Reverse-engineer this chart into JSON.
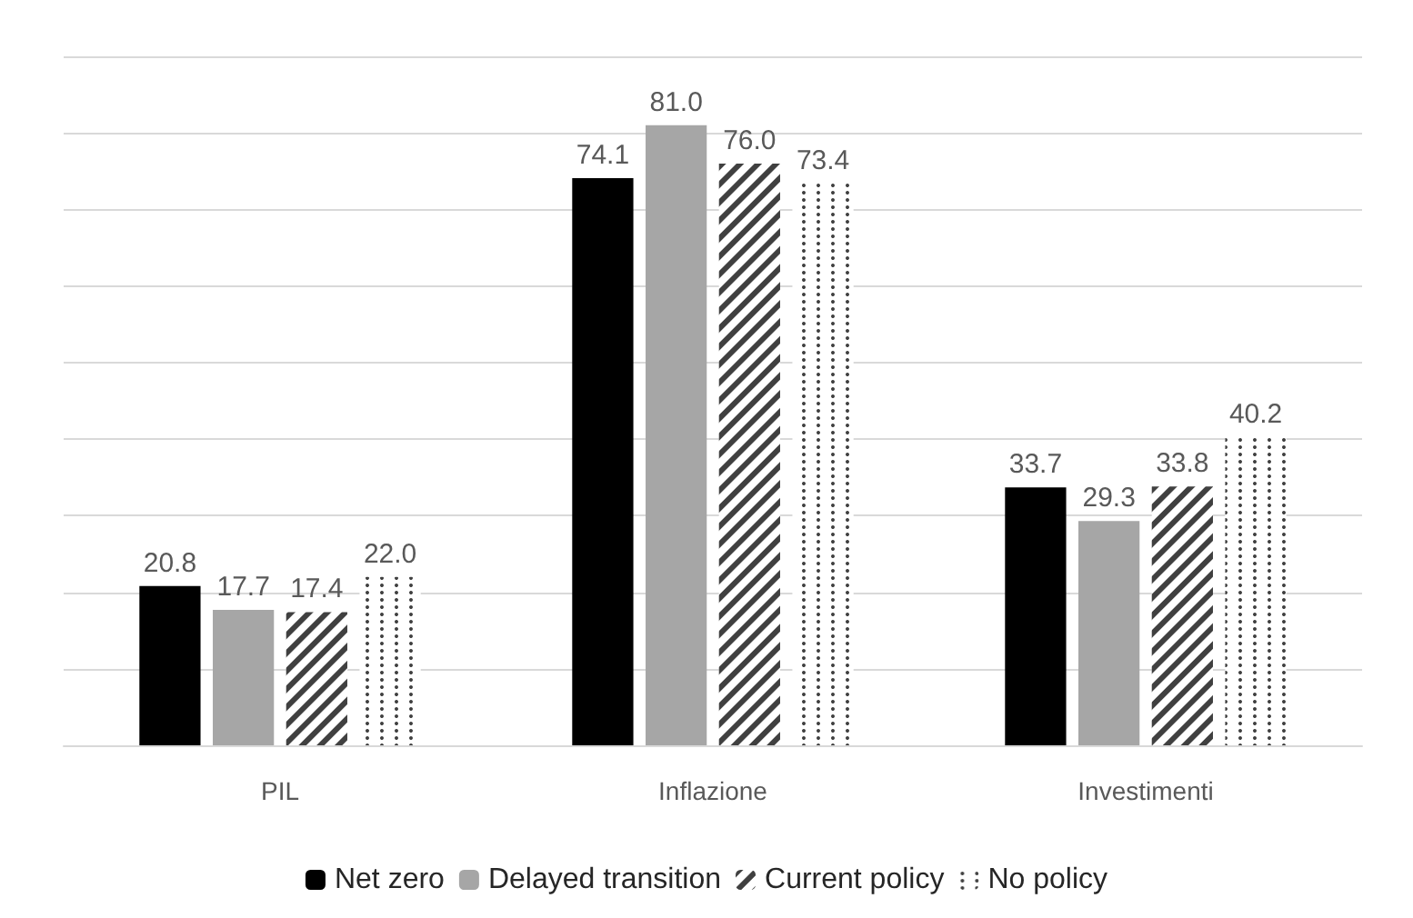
{
  "chart_data": {
    "type": "bar",
    "categories": [
      "PIL",
      "Inflazione",
      "Investimenti"
    ],
    "series": [
      {
        "name": "Net zero",
        "color": "#000000",
        "values": [
          20.8,
          74.1,
          33.7
        ],
        "value_labels": [
          "20.8",
          "74.1",
          "33.7"
        ]
      },
      {
        "name": "Delayed transition",
        "color": "#a6a6a6",
        "values": [
          17.7,
          81.0,
          29.3
        ],
        "value_labels": [
          "17.7",
          "81.0",
          "29.3"
        ]
      },
      {
        "name": "Current policy",
        "color": "#404040",
        "values": [
          17.4,
          76.0,
          33.8
        ],
        "value_labels": [
          "17.4",
          "76.0",
          "33.8"
        ]
      },
      {
        "name": "No policy",
        "color": "#404040",
        "values": [
          22.0,
          73.4,
          40.2
        ],
        "value_labels": [
          "22.0",
          "73.4",
          "40.2"
        ]
      }
    ],
    "ylim": [
      0,
      90
    ],
    "yticks": [
      {
        "value": 0,
        "label": null
      },
      {
        "value": 10,
        "label": null
      },
      {
        "value": 20,
        "label": null
      },
      {
        "value": 30,
        "label": null
      },
      {
        "value": 40,
        "label": null
      },
      {
        "value": 50,
        "label": null
      },
      {
        "value": 60,
        "label": null
      },
      {
        "value": 70,
        "label": null
      },
      {
        "value": 80,
        "label": null
      },
      {
        "value": 90,
        "label": null
      }
    ],
    "tick_labels": "x",
    "grid": "y",
    "legend": "bottom"
  }
}
